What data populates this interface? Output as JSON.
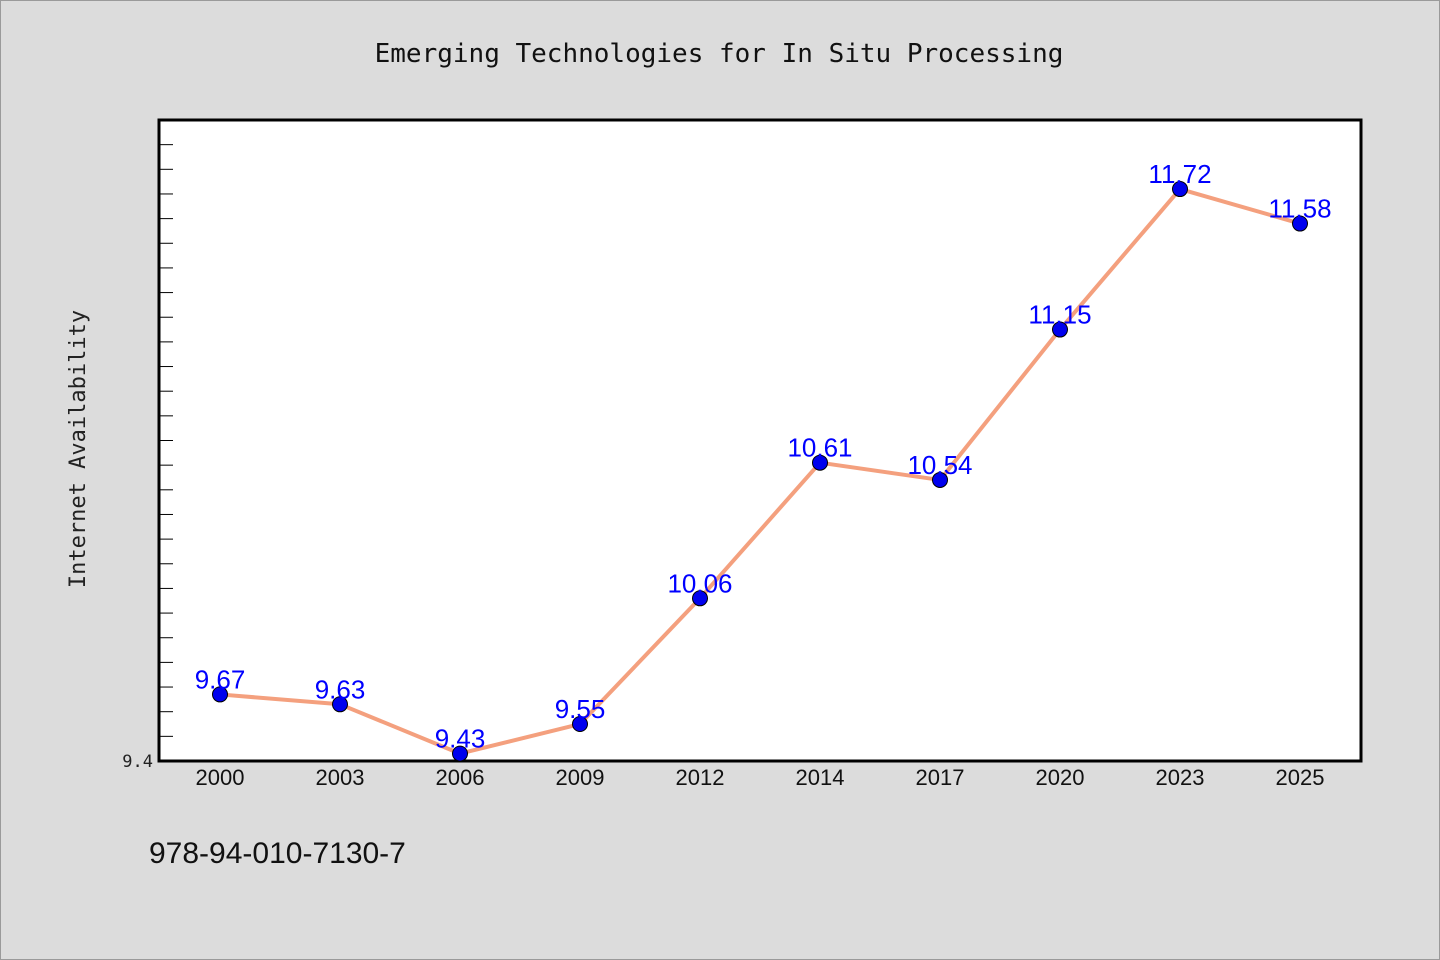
{
  "chart_data": {
    "type": "line",
    "title": "Emerging Technologies for In Situ Processing",
    "xlabel": "",
    "ylabel": "Internet Availability",
    "categories": [
      "2000",
      "2003",
      "2006",
      "2009",
      "2012",
      "2014",
      "2017",
      "2020",
      "2023",
      "2025"
    ],
    "series": [
      {
        "values": [
          9.67,
          9.63,
          9.43,
          9.55,
          10.06,
          10.61,
          10.54,
          11.15,
          11.72,
          11.58
        ],
        "labels": [
          "9.67",
          "9.63",
          "9.43",
          "9.55",
          "10.06",
          "10.61",
          "10.54",
          "11.15",
          "11.72",
          "11.58"
        ],
        "line_color": "#f4a07e",
        "marker_color": "#0000ee"
      }
    ],
    "ylim": [
      9.4,
      12.0
    ],
    "y_tick_labels": [
      "9.4"
    ],
    "grid": false,
    "legend": "none"
  },
  "footer": {
    "isbn": "978-94-010-7130-7"
  },
  "colors": {
    "background": "#dcdcdc",
    "plot_background": "#ffffff",
    "line": "#f4a07e",
    "marker": "#0000ee",
    "data_label": "#0000ff"
  }
}
